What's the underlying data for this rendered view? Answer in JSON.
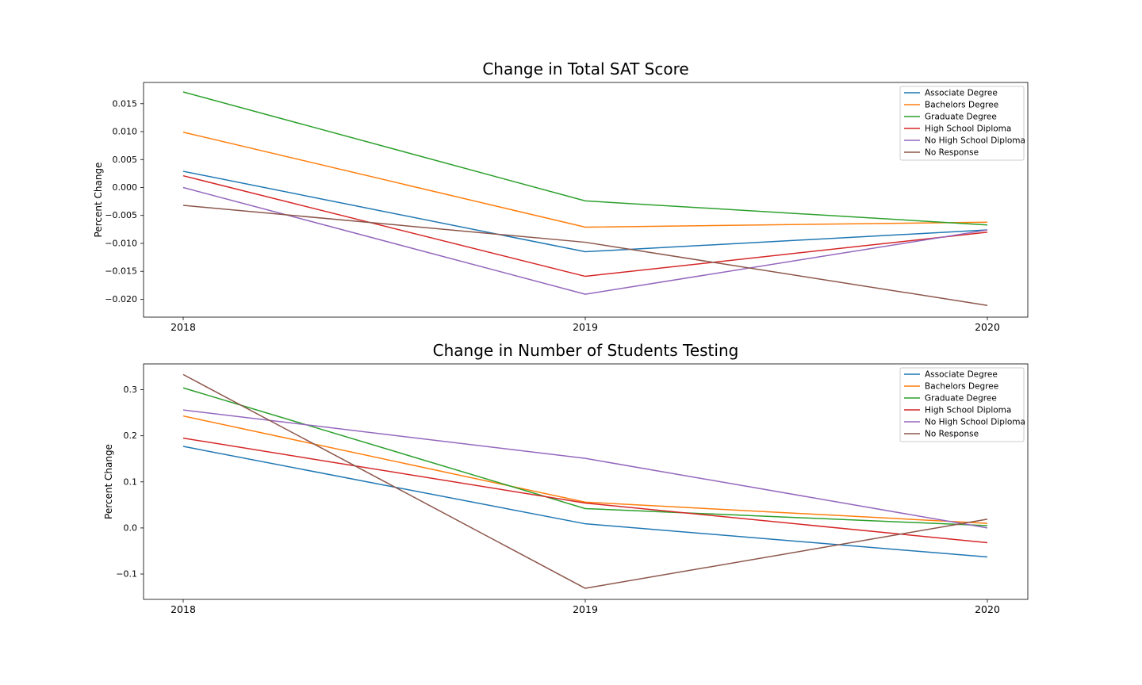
{
  "chart_data": [
    {
      "type": "line",
      "title": "Change in Total SAT Score",
      "xlabel": "",
      "ylabel": "Percent Change",
      "x": [
        "2018",
        "2019",
        "2020"
      ],
      "yticks": [
        "0.015",
        "0.010",
        "0.005",
        "0.000",
        "−0.005",
        "−0.010",
        "−0.015",
        "−0.020"
      ],
      "ytick_values": [
        0.015,
        0.01,
        0.005,
        0.0,
        -0.005,
        -0.01,
        -0.015,
        -0.02
      ],
      "ylim": [
        -0.0232,
        0.0188
      ],
      "legend_position": "top-right",
      "grid": false,
      "series": [
        {
          "name": "Associate Degree",
          "color": "#1f77b4",
          "values": [
            0.0029,
            -0.0115,
            -0.0076
          ]
        },
        {
          "name": "Bachelors Degree",
          "color": "#ff7f0e",
          "values": [
            0.0099,
            -0.0071,
            -0.0062
          ]
        },
        {
          "name": "Graduate Degree",
          "color": "#2ca02c",
          "values": [
            0.0171,
            -0.0024,
            -0.0067
          ]
        },
        {
          "name": "High School Diploma",
          "color": "#d62728",
          "values": [
            0.0021,
            -0.0159,
            -0.008
          ]
        },
        {
          "name": "No High School Diploma",
          "color": "#9467bd",
          "values": [
            0.0,
            -0.0191,
            -0.0076
          ]
        },
        {
          "name": "No Response",
          "color": "#8c564b",
          "values": [
            -0.0032,
            -0.0098,
            -0.0211
          ]
        }
      ]
    },
    {
      "type": "line",
      "title": "Change in Number of Students Testing",
      "xlabel": "",
      "ylabel": "Percent Change",
      "x": [
        "2018",
        "2019",
        "2020"
      ],
      "yticks": [
        "0.3",
        "0.2",
        "0.1",
        "0.0",
        "−0.1"
      ],
      "ytick_values": [
        0.3,
        0.2,
        0.1,
        0.0,
        -0.1
      ],
      "ylim": [
        -0.155,
        0.356
      ],
      "legend_position": "top-right",
      "grid": false,
      "series": [
        {
          "name": "Associate Degree",
          "color": "#1f77b4",
          "values": [
            0.177,
            0.009,
            -0.063
          ]
        },
        {
          "name": "Bachelors Degree",
          "color": "#ff7f0e",
          "values": [
            0.243,
            0.056,
            0.01
          ]
        },
        {
          "name": "Graduate Degree",
          "color": "#2ca02c",
          "values": [
            0.304,
            0.042,
            0.005
          ]
        },
        {
          "name": "High School Diploma",
          "color": "#d62728",
          "values": [
            0.195,
            0.054,
            -0.032
          ]
        },
        {
          "name": "No High School Diploma",
          "color": "#9467bd",
          "values": [
            0.256,
            0.151,
            0.0
          ]
        },
        {
          "name": "No Response",
          "color": "#8c564b",
          "values": [
            0.333,
            -0.131,
            0.019
          ]
        }
      ]
    }
  ]
}
